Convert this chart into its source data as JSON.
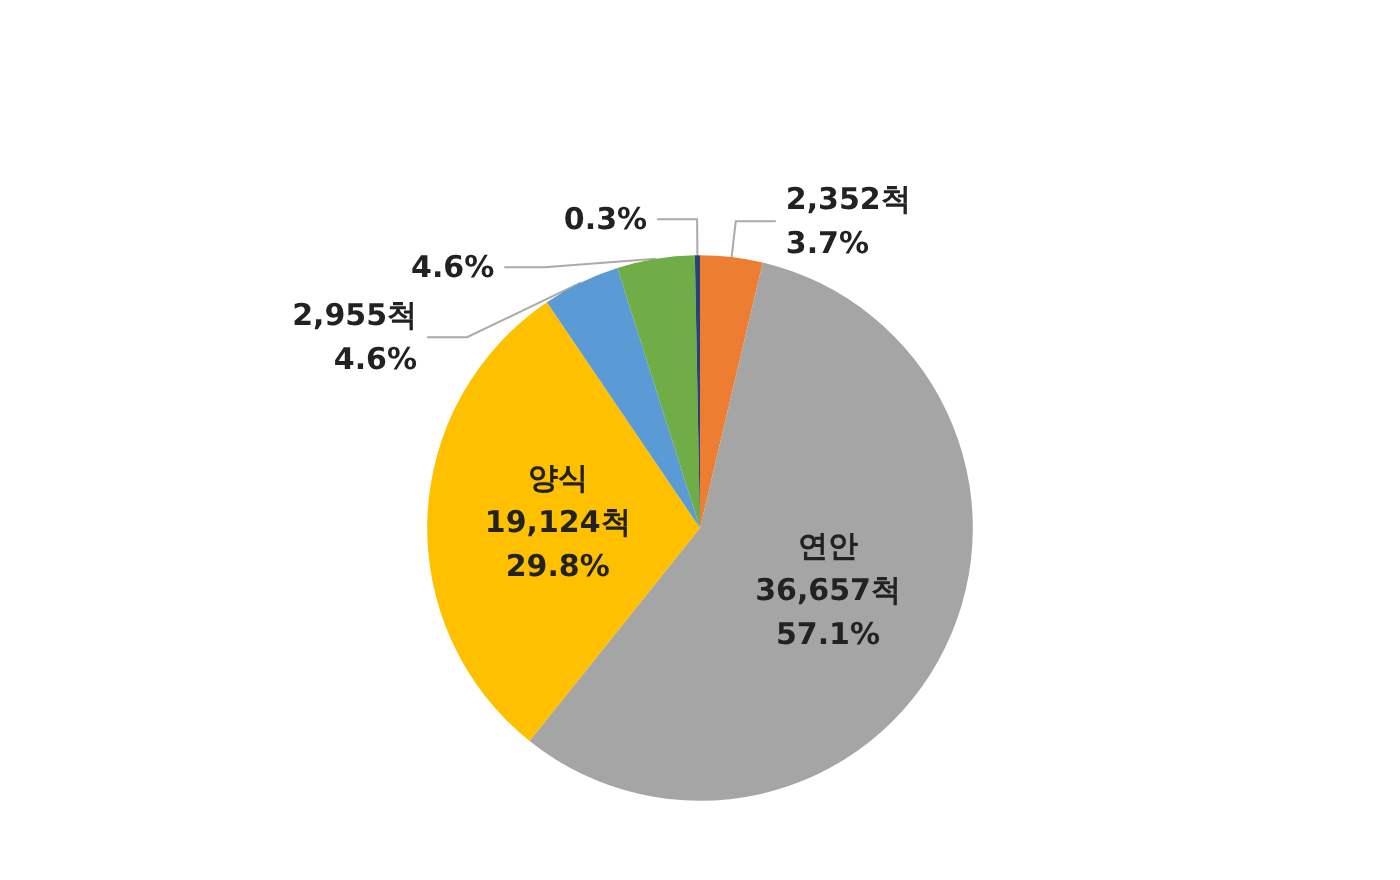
{
  "chart_data": {
    "type": "pie",
    "categories": [
      null,
      "연안",
      "양식",
      null,
      null,
      null
    ],
    "values": [
      3.7,
      57.1,
      29.8,
      4.6,
      4.6,
      0.3
    ],
    "value_labels": [
      "2,352척\n3.7%",
      "36,657척\n57.1%",
      "19,124척\n29.8%",
      "2,955척\n4.6%",
      "4.6%",
      "0.3%"
    ],
    "colors": [
      "#ed7d31",
      "#a5a5a5",
      "#ffc000",
      "#5b9bd5",
      "#70ad47",
      "#264478"
    ],
    "legend": false
  }
}
